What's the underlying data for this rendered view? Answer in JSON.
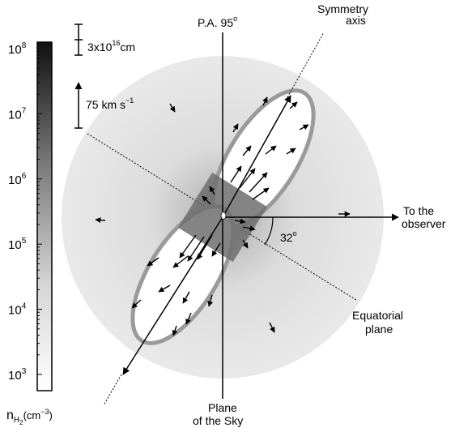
{
  "colorbar": {
    "title_main": "n",
    "title_sub": "H",
    "title_sub2": "2",
    "title_units": "(cm",
    "title_exp": "−3",
    "title_close": ")",
    "ticks": [
      {
        "base": "10",
        "exp": "8"
      },
      {
        "base": "10",
        "exp": "7"
      },
      {
        "base": "10",
        "exp": "6"
      },
      {
        "base": "10",
        "exp": "5"
      },
      {
        "base": "10",
        "exp": "4"
      },
      {
        "base": "10",
        "exp": "3"
      }
    ]
  },
  "scale_bars": {
    "length_value": "3x10",
    "length_exp": "16",
    "length_unit": "cm",
    "velocity_value": "75 km s",
    "velocity_exp": "−1"
  },
  "labels": {
    "pa_text": "P.A. 95",
    "pa_degree": "o",
    "symmetry_line1": "Symmetry",
    "symmetry_line2": "axis",
    "observer_line1": "To the",
    "observer_line2": "observer",
    "angle_value": "32",
    "angle_degree": "o",
    "equatorial_line1": "Equatorial",
    "equatorial_line2": "plane",
    "sky_line1": "Plane",
    "sky_line2": "of the Sky"
  },
  "geometry_facts": {
    "symmetry_axis_angle_deg": 32,
    "colorbar_log_min": 3,
    "colorbar_log_max": 8
  }
}
